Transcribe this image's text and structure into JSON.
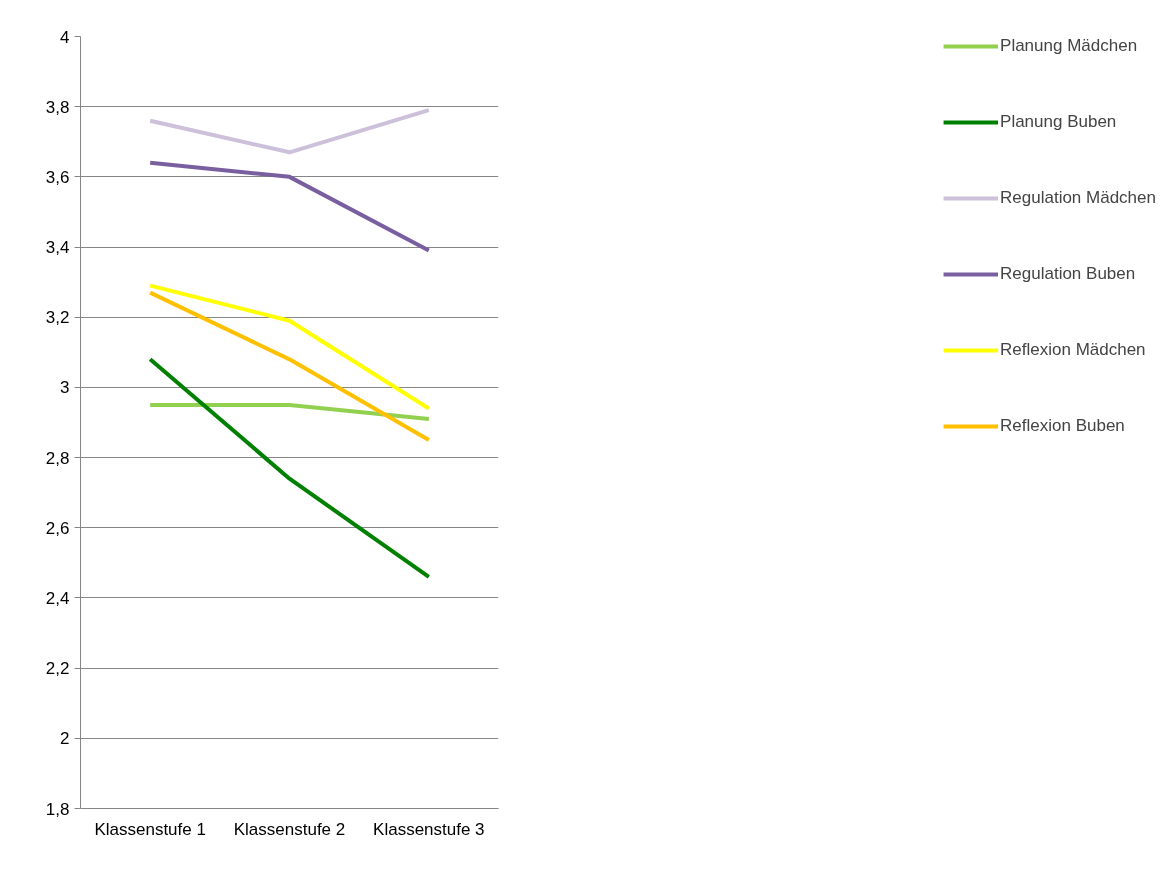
{
  "chart_data": {
    "type": "line",
    "categories": [
      "Klassenstufe 1",
      "Klassenstufe 2",
      "Klassenstufe 3"
    ],
    "series": [
      {
        "name": "Planung Mädchen",
        "color": "#92d050",
        "values": [
          2.95,
          2.95,
          2.91
        ]
      },
      {
        "name": "Planung Buben",
        "color": "#008000",
        "values": [
          3.08,
          2.74,
          2.46
        ]
      },
      {
        "name": "Regulation Mädchen",
        "color": "#ccc0da",
        "values": [
          3.76,
          3.67,
          3.79
        ]
      },
      {
        "name": "Regulation Buben",
        "color": "#7a5fa0",
        "values": [
          3.64,
          3.6,
          3.39
        ]
      },
      {
        "name": "Reflexion Mädchen",
        "color": "#ffff00",
        "values": [
          3.29,
          3.19,
          2.94
        ]
      },
      {
        "name": "Reflexion Buben",
        "color": "#ffc000",
        "values": [
          3.27,
          3.08,
          2.85
        ]
      }
    ],
    "ylim": [
      1.8,
      4
    ],
    "yticks": [
      {
        "value": 1.8,
        "label": "1,8"
      },
      2,
      {
        "value": 2.2,
        "label": "2,2"
      },
      {
        "value": 2.4,
        "label": "2,4"
      },
      {
        "value": 2.6,
        "label": "2,6"
      },
      {
        "value": 2.8,
        "label": "2,8"
      },
      3,
      {
        "value": 3.2,
        "label": "3,2"
      },
      {
        "value": 3.4,
        "label": "3,4"
      },
      {
        "value": 3.6,
        "label": "3,6"
      },
      {
        "value": 3.8,
        "label": "3,8"
      },
      4
    ],
    "grid": "y",
    "legend": "right",
    "marker": "none",
    "line_style": "solid"
  }
}
